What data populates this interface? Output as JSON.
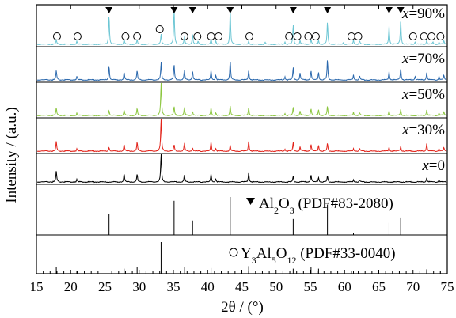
{
  "chart_data": {
    "type": "line",
    "title": "",
    "xlabel": "2θ / (°)",
    "ylabel": "Intensity / (a.u.)",
    "xlim": [
      15,
      75
    ],
    "x_ticks": [
      15,
      20,
      25,
      30,
      35,
      40,
      45,
      50,
      55,
      60,
      65,
      70,
      75
    ],
    "grid": false,
    "legend": "none",
    "panels": [
      {
        "id": "x90",
        "label_var": "x",
        "label_value": "=90%",
        "color": "#6cc6d4",
        "baseline": 3,
        "peaks": [
          [
            17.9,
            0.12
          ],
          [
            20.9,
            0.08
          ],
          [
            25.6,
            0.85
          ],
          [
            27.8,
            0.14
          ],
          [
            29.7,
            0.12
          ],
          [
            33.2,
            0.28
          ],
          [
            35.1,
            1.0
          ],
          [
            36.6,
            0.22
          ],
          [
            37.8,
            0.3
          ],
          [
            38.6,
            0.08
          ],
          [
            40.5,
            0.15
          ],
          [
            41.2,
            0.1
          ],
          [
            43.3,
            0.96
          ],
          [
            46.0,
            0.1
          ],
          [
            48.4,
            0.06
          ],
          [
            51.3,
            0.07
          ],
          [
            52.5,
            0.55
          ],
          [
            53.5,
            0.1
          ],
          [
            55.1,
            0.14
          ],
          [
            56.2,
            0.12
          ],
          [
            57.5,
            0.62
          ],
          [
            59.8,
            0.05
          ],
          [
            61.3,
            0.13
          ],
          [
            62.2,
            0.1
          ],
          [
            66.5,
            0.52
          ],
          [
            68.2,
            0.7
          ],
          [
            70.3,
            0.08
          ],
          [
            72.0,
            0.12
          ],
          [
            72.9,
            0.06
          ],
          [
            73.8,
            0.07
          ],
          [
            74.5,
            0.1
          ]
        ]
      },
      {
        "id": "x70",
        "label_var": "x",
        "label_value": "=70%",
        "color": "#2a68ad",
        "baseline": 3,
        "peaks": [
          [
            17.9,
            0.28
          ],
          [
            20.9,
            0.1
          ],
          [
            25.6,
            0.44
          ],
          [
            27.8,
            0.24
          ],
          [
            29.7,
            0.28
          ],
          [
            33.2,
            0.52
          ],
          [
            35.1,
            0.46
          ],
          [
            36.6,
            0.3
          ],
          [
            37.8,
            0.28
          ],
          [
            40.5,
            0.28
          ],
          [
            41.2,
            0.14
          ],
          [
            43.3,
            0.58
          ],
          [
            46.0,
            0.3
          ],
          [
            51.3,
            0.1
          ],
          [
            52.5,
            0.38
          ],
          [
            53.5,
            0.2
          ],
          [
            55.1,
            0.28
          ],
          [
            56.2,
            0.24
          ],
          [
            57.5,
            0.6
          ],
          [
            61.3,
            0.16
          ],
          [
            62.2,
            0.12
          ],
          [
            66.5,
            0.26
          ],
          [
            68.2,
            0.36
          ],
          [
            70.3,
            0.12
          ],
          [
            72.0,
            0.22
          ],
          [
            73.8,
            0.12
          ],
          [
            74.5,
            0.14
          ]
        ]
      },
      {
        "id": "x50",
        "label_var": "x",
        "label_value": "=50%",
        "color": "#8cc63f",
        "baseline": 3,
        "peaks": [
          [
            17.9,
            0.22
          ],
          [
            20.9,
            0.06
          ],
          [
            25.6,
            0.16
          ],
          [
            27.8,
            0.16
          ],
          [
            29.7,
            0.2
          ],
          [
            33.2,
            1.0
          ],
          [
            35.1,
            0.26
          ],
          [
            36.6,
            0.24
          ],
          [
            37.8,
            0.12
          ],
          [
            40.5,
            0.22
          ],
          [
            41.2,
            0.08
          ],
          [
            43.3,
            0.26
          ],
          [
            46.0,
            0.24
          ],
          [
            51.3,
            0.06
          ],
          [
            52.5,
            0.24
          ],
          [
            53.5,
            0.12
          ],
          [
            55.1,
            0.2
          ],
          [
            56.2,
            0.18
          ],
          [
            57.5,
            0.26
          ],
          [
            61.3,
            0.1
          ],
          [
            62.2,
            0.08
          ],
          [
            66.5,
            0.14
          ],
          [
            68.2,
            0.18
          ],
          [
            72.0,
            0.16
          ],
          [
            73.8,
            0.08
          ],
          [
            74.5,
            0.1
          ]
        ]
      },
      {
        "id": "x30",
        "label_var": "x",
        "label_value": "=30%",
        "color": "#e2231a",
        "baseline": 3,
        "peaks": [
          [
            17.9,
            0.28
          ],
          [
            20.9,
            0.06
          ],
          [
            25.6,
            0.12
          ],
          [
            27.8,
            0.2
          ],
          [
            29.7,
            0.26
          ],
          [
            33.2,
            1.0
          ],
          [
            35.1,
            0.18
          ],
          [
            36.6,
            0.24
          ],
          [
            37.8,
            0.1
          ],
          [
            40.5,
            0.26
          ],
          [
            41.2,
            0.08
          ],
          [
            43.3,
            0.16
          ],
          [
            46.0,
            0.3
          ],
          [
            51.3,
            0.06
          ],
          [
            52.5,
            0.26
          ],
          [
            53.5,
            0.12
          ],
          [
            55.1,
            0.2
          ],
          [
            56.2,
            0.18
          ],
          [
            57.5,
            0.22
          ],
          [
            61.3,
            0.08
          ],
          [
            62.2,
            0.08
          ],
          [
            66.5,
            0.12
          ],
          [
            68.2,
            0.14
          ],
          [
            72.0,
            0.22
          ],
          [
            73.8,
            0.08
          ],
          [
            74.5,
            0.1
          ]
        ]
      },
      {
        "id": "x0",
        "label_var": "x",
        "label_value": "=0",
        "color": "#000000",
        "baseline": 3,
        "peaks": [
          [
            17.9,
            0.36
          ],
          [
            20.9,
            0.08
          ],
          [
            27.8,
            0.28
          ],
          [
            29.7,
            0.26
          ],
          [
            33.2,
            1.0
          ],
          [
            36.6,
            0.24
          ],
          [
            40.5,
            0.26
          ],
          [
            41.2,
            0.1
          ],
          [
            46.0,
            0.32
          ],
          [
            52.5,
            0.2
          ],
          [
            55.1,
            0.24
          ],
          [
            56.2,
            0.16
          ],
          [
            57.5,
            0.2
          ],
          [
            61.3,
            0.08
          ],
          [
            62.2,
            0.06
          ],
          [
            72.0,
            0.14
          ],
          [
            73.8,
            0.08
          ]
        ]
      },
      {
        "id": "al2o3-ref",
        "type": "reference",
        "label": "Al2O3 (PDF#83-2080)",
        "color": "#000000",
        "lines": [
          [
            25.6,
            0.55
          ],
          [
            35.1,
            0.9
          ],
          [
            37.8,
            0.38
          ],
          [
            43.3,
            1.0
          ],
          [
            52.5,
            0.42
          ],
          [
            57.5,
            0.8
          ],
          [
            61.3,
            0.06
          ],
          [
            66.5,
            0.32
          ],
          [
            68.2,
            0.46
          ]
        ]
      },
      {
        "id": "yag-ref",
        "type": "reference",
        "label": "Y3Al5O12 (PDF#33-0040)",
        "color": "#000000",
        "lines": [
          [
            17.9,
            0.22
          ],
          [
            20.9,
            0.08
          ],
          [
            27.8,
            0.16
          ],
          [
            29.7,
            0.22
          ],
          [
            33.2,
            1.0
          ],
          [
            36.6,
            0.2
          ],
          [
            40.5,
            0.18
          ],
          [
            46.0,
            0.24
          ],
          [
            52.5,
            0.16
          ],
          [
            55.1,
            0.2
          ],
          [
            56.2,
            0.16
          ],
          [
            61.3,
            0.08
          ],
          [
            72.0,
            0.14
          ],
          [
            73.8,
            0.08
          ]
        ]
      }
    ],
    "markers": {
      "al2o3_triangle_x": [
        25.6,
        35.1,
        37.8,
        43.3,
        52.5,
        57.5,
        66.5,
        68.2
      ],
      "yag_circle_x": [
        18.0,
        21.0,
        28.0,
        29.7,
        33.0,
        36.6,
        38.5,
        40.5,
        41.6,
        46.1,
        51.9,
        53.1,
        54.7,
        55.8,
        61.0,
        62.0,
        70.0,
        71.6,
        72.7,
        74.0
      ]
    }
  }
}
